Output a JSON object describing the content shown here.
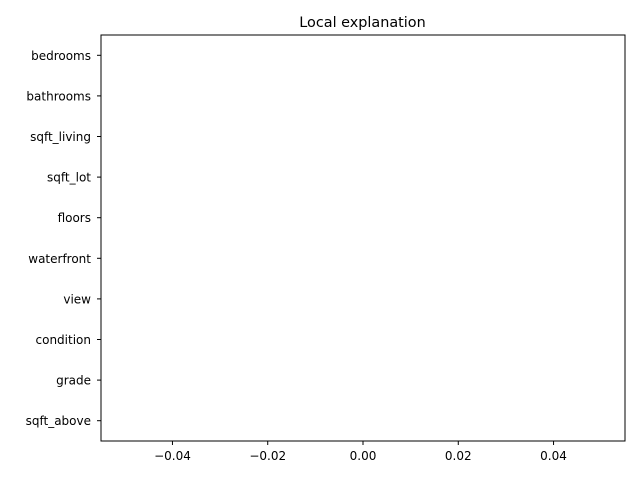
{
  "chart_data": {
    "type": "bar",
    "orientation": "horizontal",
    "title": "Local explanation",
    "xlabel": "",
    "ylabel": "",
    "categories": [
      "bedrooms",
      "bathrooms",
      "sqft_living",
      "sqft_lot",
      "floors",
      "waterfront",
      "view",
      "condition",
      "grade",
      "sqft_above"
    ],
    "values": [
      0,
      0,
      0,
      0,
      0,
      0,
      0,
      0,
      0,
      0
    ],
    "xlim": [
      -0.055,
      0.055
    ],
    "xticks": [
      -0.04,
      -0.02,
      0.0,
      0.02,
      0.04
    ],
    "xtick_labels": [
      "−0.04",
      "−0.02",
      "0.00",
      "0.02",
      "0.04"
    ],
    "grid": false,
    "legend": "none",
    "colors": {
      "axes": "#000000",
      "background": "#ffffff",
      "text": "#000000"
    }
  }
}
